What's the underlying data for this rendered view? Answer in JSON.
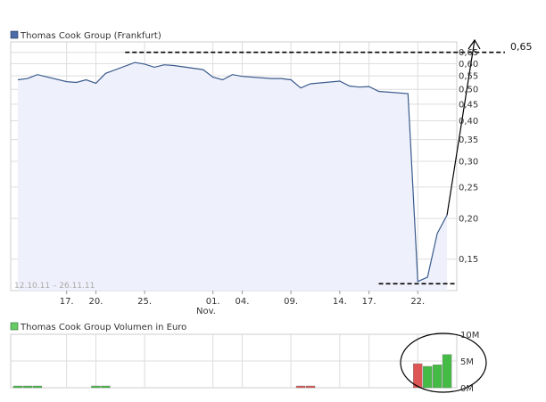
{
  "price_chart": {
    "legend_label": "Thomas Cook Group (Frankfurt)",
    "date_range": "12.10.11 – 26.11.11",
    "x_tick_labels": [
      "17.",
      "20.",
      "25.",
      "01.",
      "04.",
      "09.",
      "14.",
      "17.",
      "22."
    ],
    "month_label": "Nov.",
    "y_tick_labels": [
      "0,65",
      "0,60",
      "0,55",
      "0,50",
      "0,45",
      "0,40",
      "0,35",
      "0,30",
      "0,25",
      "0,20",
      "0,15"
    ],
    "annotation_label": "0,65",
    "colors": {
      "line": "#3a5a8c",
      "fill": "#eef1fb",
      "legend_swatch": "#4a6aa8",
      "grid": "#dddddd"
    }
  },
  "volume_chart": {
    "legend_label": "Thomas Cook Group Volumen in Euro",
    "y_tick_labels": [
      "10M",
      "5M",
      "0M"
    ],
    "colors": {
      "up": "#44bb44",
      "down": "#dd5555",
      "legend_swatch": "#66cc66"
    }
  },
  "chart_data": [
    {
      "type": "line",
      "title": "Thomas Cook Group (Frankfurt)",
      "y_scale": "log",
      "ylim": [
        0.12,
        0.7
      ],
      "xlim": [
        "2011-10-12",
        "2011-11-26"
      ],
      "series": [
        {
          "name": "Thomas Cook Group (Frankfurt)",
          "points": [
            [
              "2011-10-12",
              0.535
            ],
            [
              "2011-10-13",
              0.54
            ],
            [
              "2011-10-14",
              0.555
            ],
            [
              "2011-10-17",
              0.528
            ],
            [
              "2011-10-18",
              0.525
            ],
            [
              "2011-10-19",
              0.535
            ],
            [
              "2011-10-20",
              0.522
            ],
            [
              "2011-10-21",
              0.56
            ],
            [
              "2011-10-24",
              0.605
            ],
            [
              "2011-10-25",
              0.598
            ],
            [
              "2011-10-26",
              0.585
            ],
            [
              "2011-10-27",
              0.595
            ],
            [
              "2011-10-28",
              0.592
            ],
            [
              "2011-10-31",
              0.575
            ],
            [
              "2011-11-01",
              0.545
            ],
            [
              "2011-11-02",
              0.535
            ],
            [
              "2011-11-03",
              0.555
            ],
            [
              "2011-11-04",
              0.548
            ],
            [
              "2011-11-07",
              0.54
            ],
            [
              "2011-11-08",
              0.54
            ],
            [
              "2011-11-09",
              0.535
            ],
            [
              "2011-11-10",
              0.505
            ],
            [
              "2011-11-11",
              0.52
            ],
            [
              "2011-11-14",
              0.53
            ],
            [
              "2011-11-15",
              0.512
            ],
            [
              "2011-11-16",
              0.508
            ],
            [
              "2011-11-17",
              0.51
            ],
            [
              "2011-11-18",
              0.493
            ],
            [
              "2011-11-21",
              0.485
            ],
            [
              "2011-11-22",
              0.128
            ],
            [
              "2011-11-23",
              0.132
            ],
            [
              "2011-11-24",
              0.18
            ],
            [
              "2011-11-25",
              0.205
            ]
          ]
        }
      ],
      "annotations": [
        {
          "type": "dashed-line",
          "y": 0.65,
          "from": "2011-10-23",
          "to": "end",
          "label": "0,65"
        },
        {
          "type": "dashed-line",
          "y": 0.126,
          "from": "2011-11-18",
          "to": "2011-11-26"
        },
        {
          "type": "arrow",
          "from": [
            "2011-11-25",
            0.205
          ],
          "to": [
            "2011-11-26",
            0.7
          ]
        }
      ],
      "grid": true
    },
    {
      "type": "bar",
      "title": "Thomas Cook Group Volumen in Euro",
      "ylim": [
        0,
        10
      ],
      "y_unit": "M",
      "series": [
        {
          "name": "Thomas Cook Group Volumen in Euro",
          "points": [
            [
              "2011-10-12",
              0.2,
              "up"
            ],
            [
              "2011-10-13",
              0.2,
              "up"
            ],
            [
              "2011-10-14",
              0.2,
              "up"
            ],
            [
              "2011-10-20",
              0.2,
              "up"
            ],
            [
              "2011-10-21",
              0.2,
              "up"
            ],
            [
              "2011-11-10",
              0.2,
              "down"
            ],
            [
              "2011-11-11",
              0.2,
              "down"
            ],
            [
              "2011-11-22",
              4.5,
              "down"
            ],
            [
              "2011-11-23",
              4.0,
              "up"
            ],
            [
              "2011-11-24",
              4.3,
              "up"
            ],
            [
              "2011-11-25",
              6.2,
              "up"
            ]
          ]
        }
      ],
      "annotations": [
        {
          "type": "ellipse-highlight",
          "from": "2011-11-21",
          "to": "2011-11-26"
        }
      ]
    }
  ]
}
